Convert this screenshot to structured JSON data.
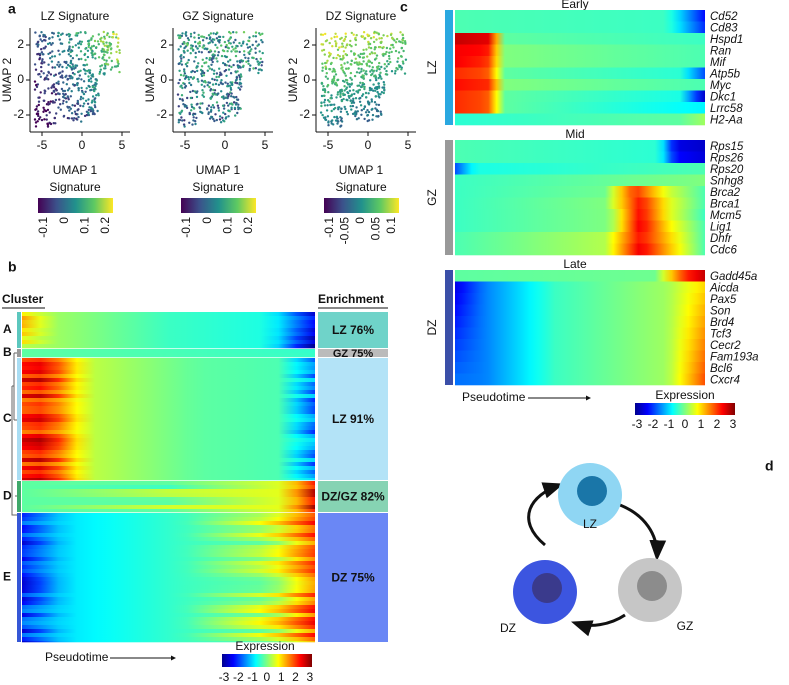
{
  "panel_a": {
    "label": "a",
    "plots": [
      {
        "title": "LZ Signature",
        "colorbar_ticks": [
          "-0.1",
          "0",
          "0.1",
          "0.2"
        ]
      },
      {
        "title": "GZ Signature",
        "colorbar_ticks": [
          "-0.1",
          "0",
          "0.1",
          "0.2"
        ]
      },
      {
        "title": "DZ Signature",
        "colorbar_ticks": [
          "-0.1",
          "-0.05",
          "0",
          "0.05",
          "0.1"
        ]
      }
    ],
    "x_label": "UMAP 1",
    "y_label": "UMAP 2",
    "x_ticks": [
      "-5",
      "0",
      "5"
    ],
    "y_ticks": [
      "2",
      "0",
      "-2"
    ],
    "colorbar_title": "Signature"
  },
  "panel_b": {
    "label": "b",
    "cluster_header": "Cluster",
    "enrichment_header": "Enrichment",
    "clusters": [
      {
        "name": "A",
        "enrichment": "LZ 76%"
      },
      {
        "name": "B",
        "enrichment": "GZ 75%"
      },
      {
        "name": "C",
        "enrichment": "LZ 91%"
      },
      {
        "name": "D",
        "enrichment": "DZ/GZ 82%"
      },
      {
        "name": "E",
        "enrichment": "DZ 75%"
      }
    ],
    "x_label": "Pseudotime",
    "colorbar_title": "Expression",
    "colorbar_ticks": [
      "-3",
      "-2",
      "-1",
      "0",
      "1",
      "2",
      "3"
    ]
  },
  "panel_c": {
    "label": "c",
    "groups": [
      {
        "stage": "Early",
        "zone": "LZ",
        "genes": [
          "Cd52",
          "Cd83",
          "Hspd1",
          "Ran",
          "Mif",
          "Atp5b",
          "Myc",
          "Dkc1",
          "Lrrc58",
          "H2-Aa"
        ]
      },
      {
        "stage": "Mid",
        "zone": "GZ",
        "genes": [
          "Rps15",
          "Rps26",
          "Rps20",
          "Snhg8",
          "Brca2",
          "Brca1",
          "Mcm5",
          "Lig1",
          "Dhfr",
          "Cdc6"
        ]
      },
      {
        "stage": "Late",
        "zone": "DZ",
        "genes": [
          "Gadd45a",
          "Aicda",
          "Pax5",
          "Son",
          "Brd4",
          "Tcf3",
          "Cecr2",
          "Fam193a",
          "Bcl6",
          "Cxcr4"
        ]
      }
    ],
    "x_label": "Pseudotime",
    "colorbar_title": "Expression",
    "colorbar_ticks": [
      "-3",
      "-2",
      "-1",
      "0",
      "1",
      "2",
      "3"
    ]
  },
  "panel_d": {
    "label": "d",
    "nodes": [
      "LZ",
      "GZ",
      "DZ"
    ]
  }
}
